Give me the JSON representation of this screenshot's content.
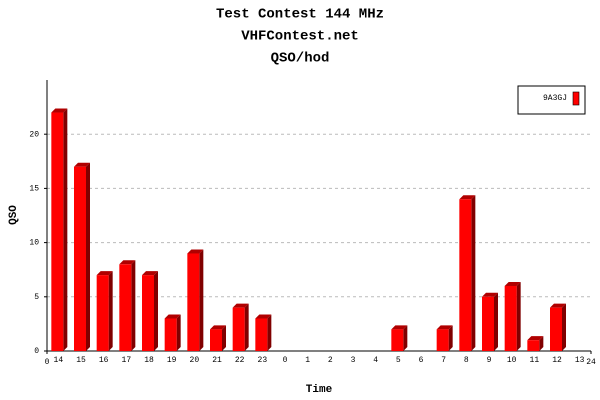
{
  "chart_data": {
    "type": "bar",
    "title": "Test Contest 144 MHz",
    "subtitle": "VHFContest.net",
    "unit_title": "QSO/hod",
    "x_label": "Time",
    "y_label": "QSO",
    "categories": [
      "14",
      "15",
      "16",
      "17",
      "18",
      "19",
      "20",
      "21",
      "22",
      "23",
      "0",
      "1",
      "2",
      "3",
      "4",
      "5",
      "6",
      "7",
      "8",
      "9",
      "10",
      "11",
      "12",
      "13"
    ],
    "series": [
      {
        "name": "9A3GJ",
        "color": "#ff0000",
        "values": [
          22,
          17,
          7,
          8,
          7,
          3,
          9,
          2,
          4,
          3,
          0,
          0,
          0,
          0,
          0,
          2,
          0,
          2,
          14,
          5,
          6,
          1,
          4,
          0
        ]
      }
    ],
    "xlim": [
      0,
      24
    ],
    "xticks": [
      0,
      24
    ],
    "ylim": [
      0,
      25
    ],
    "yticks": [
      0,
      5,
      10,
      15,
      20
    ],
    "grid": true,
    "legend": "top-right"
  }
}
